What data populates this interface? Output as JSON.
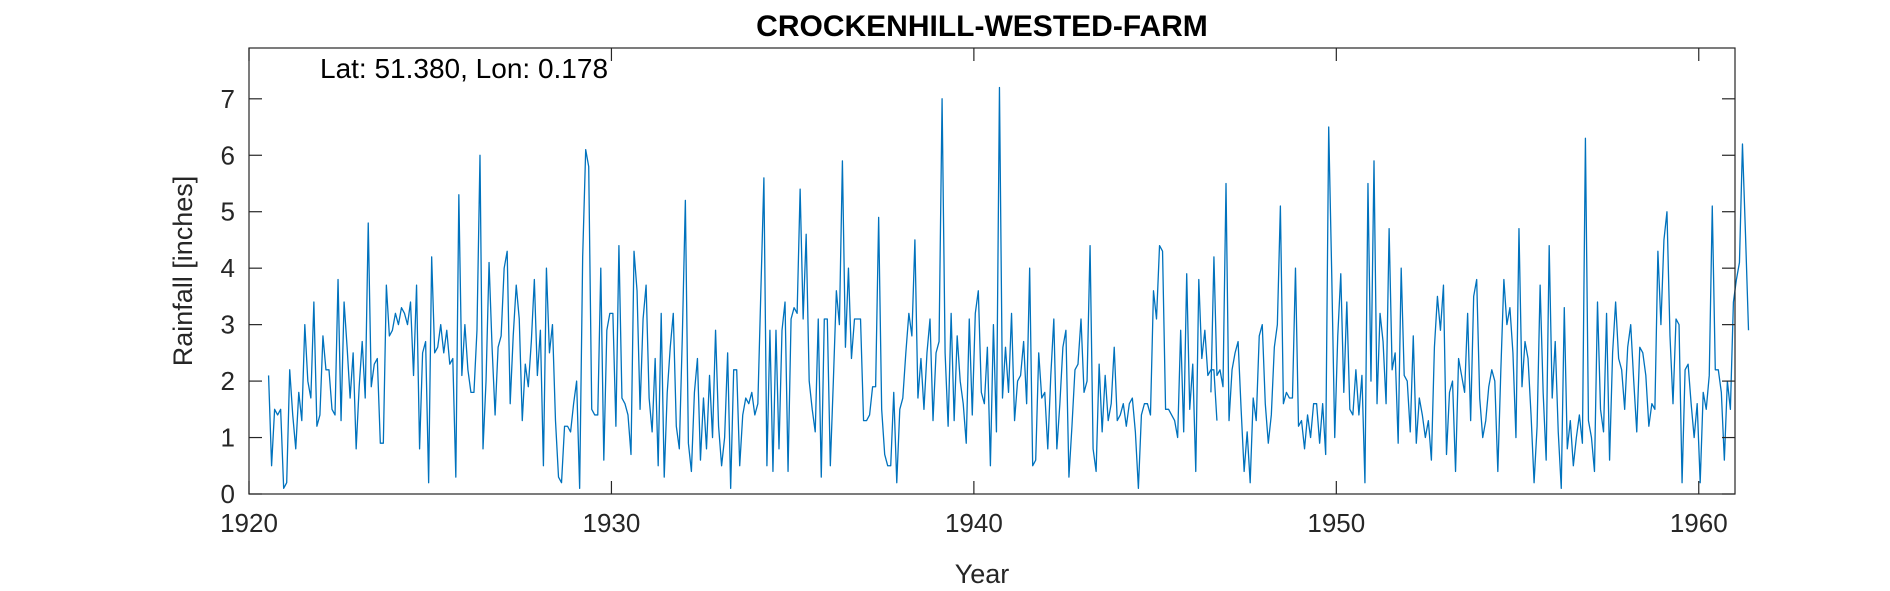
{
  "chart_data": {
    "type": "line",
    "title": "CROCKENHILL-WESTED-FARM",
    "annotation": "Lat: 51.380, Lon: 0.178",
    "xlabel": "Year",
    "ylabel": "Rainfall [inches]",
    "xlim": [
      1920,
      1961
    ],
    "ylim": [
      0,
      7.9
    ],
    "xticks": [
      1920,
      1930,
      1940,
      1950,
      1960
    ],
    "yticks": [
      0,
      1,
      2,
      3,
      4,
      5,
      6,
      7
    ],
    "grid": false,
    "line_color": "#0072bd",
    "series": [
      {
        "segments": [
          {
            "x_start": 1920.54,
            "x_step": 0.08333,
            "values": [
              2.1,
              0.5,
              1.5,
              1.4,
              1.5,
              0.1,
              0.2,
              2.2,
              1.4,
              0.8,
              1.8,
              1.3,
              3.0,
              2.0,
              1.7,
              3.4,
              1.2,
              1.4,
              2.8,
              2.2,
              2.2,
              1.5,
              1.4,
              3.8,
              1.3,
              3.4,
              2.6,
              1.7,
              2.5,
              0.8,
              1.9,
              2.7,
              1.7,
              4.8,
              1.9,
              2.3,
              2.4,
              0.9,
              0.9,
              3.7,
              2.8,
              2.9,
              3.2,
              3.0,
              3.3,
              3.2,
              3.0,
              3.4,
              2.1,
              3.7,
              0.8,
              2.5,
              2.7,
              0.2,
              4.2,
              2.5,
              2.6,
              3.0,
              2.5,
              2.9,
              2.3,
              2.4,
              0.3,
              5.3,
              2.1,
              3.0,
              2.2,
              1.8,
              1.8,
              2.9,
              6.0,
              0.8,
              2.0,
              4.1,
              2.6,
              1.4,
              2.6,
              2.8,
              4.0,
              4.3,
              1.6,
              2.8,
              3.7,
              3.1,
              1.3,
              2.3,
              1.9,
              2.7,
              3.8,
              2.1,
              2.9,
              0.5,
              4.0,
              2.5,
              3.0,
              1.3,
              0.3,
              0.2,
              1.2,
              1.2,
              1.1,
              1.6,
              2.0,
              0.1,
              4.2,
              6.1,
              5.8,
              1.5,
              1.4,
              1.4,
              4.0,
              0.6,
              2.9,
              3.2,
              3.2,
              1.2,
              4.4,
              1.7,
              1.6,
              1.4,
              0.7,
              4.3,
              3.6,
              1.5,
              3.1,
              3.7,
              1.7,
              1.1,
              2.4,
              0.5,
              3.2,
              0.3,
              1.8,
              2.6,
              3.2,
              1.2,
              0.8,
              2.8,
              5.2,
              0.9,
              0.4,
              1.8,
              2.4,
              0.6,
              1.7,
              0.8,
              2.1,
              1.0,
              2.9,
              1.2,
              0.5,
              1.0,
              2.5,
              0.1,
              2.2,
              2.2,
              0.5,
              1.4,
              1.7,
              1.6,
              1.8,
              1.4,
              1.6,
              3.6,
              5.6,
              0.5,
              2.9,
              0.4,
              2.9,
              0.8,
              2.9,
              3.4,
              0.4,
              3.1,
              3.3,
              3.2,
              5.4,
              3.1,
              4.6,
              2.0,
              1.5,
              1.1,
              3.1,
              0.3,
              3.1,
              3.1,
              0.5,
              2.0,
              3.6,
              3.0,
              5.9,
              2.6,
              4.0,
              2.4,
              3.1,
              3.1,
              3.1,
              1.3,
              1.3,
              1.4,
              1.9,
              1.9,
              4.9,
              1.5,
              0.7,
              0.5,
              0.5,
              1.8,
              0.2,
              1.5,
              1.7,
              2.5,
              3.2,
              2.8,
              4.5,
              1.7,
              2.4,
              1.5,
              2.5,
              3.1,
              1.3,
              2.5,
              2.7,
              7.0,
              2.5,
              1.2,
              3.2,
              1.3,
              2.8,
              2.0,
              1.6,
              0.9,
              3.1,
              1.4,
              3.2,
              3.6,
              1.8,
              1.6,
              2.6,
              0.5,
              3.0,
              1.1,
              7.2,
              1.7,
              2.6,
              1.8,
              3.2,
              1.3,
              2.0,
              2.1,
              2.7,
              1.6,
              4.0,
              0.5,
              0.6,
              2.5,
              1.7,
              1.8,
              0.8,
              2.1,
              3.1,
              0.8,
              1.6,
              2.6,
              2.9,
              0.3,
              1.2,
              2.2,
              2.3,
              3.1,
              1.8,
              2.0,
              4.4,
              0.8,
              0.4,
              2.3,
              1.1,
              2.1,
              1.3,
              1.6,
              2.6,
              1.3,
              1.4,
              1.6,
              1.2,
              1.6,
              1.7,
              1.1,
              0.1,
              1.4,
              1.6,
              1.6,
              1.4,
              3.6,
              3.1,
              4.4,
              4.3,
              1.5,
              1.5,
              1.4,
              1.3,
              1.0,
              2.9,
              1.1,
              3.9,
              1.5,
              2.3,
              0.4,
              3.8,
              2.4,
              2.9,
              2.1,
              2.2,
              2.2,
              1.3
            ]
          },
          {
            "x_start": 1946.54,
            "x_step": 0.08333,
            "values": [
              1.8,
              4.2,
              2.1,
              2.2,
              1.9,
              5.5,
              1.3,
              2.2,
              2.5,
              2.7,
              1.5,
              0.4,
              1.1,
              0.2,
              1.7,
              1.3,
              2.8,
              3.0,
              1.6,
              0.9,
              1.4,
              2.6,
              3.0,
              5.1,
              1.6,
              1.8,
              1.7,
              1.7,
              4.0,
              1.2,
              1.3,
              0.8,
              1.4,
              1.0,
              1.6,
              1.6,
              0.9,
              1.6,
              0.7,
              6.5,
              3.9,
              1.0,
              2.8,
              3.9,
              1.8,
              3.4,
              1.5,
              1.4,
              2.2,
              1.4,
              2.1,
              0.2,
              5.5,
              2.0,
              5.9,
              1.6,
              3.2,
              2.7,
              1.6,
              4.7,
              2.2,
              2.5,
              0.9,
              4.0,
              2.1,
              2.0,
              1.1,
              2.8,
              0.9,
              1.7,
              1.4,
              1.0,
              1.3,
              0.6,
              2.6,
              3.5,
              2.9,
              3.7,
              0.7,
              1.8,
              2.0,
              0.4,
              2.4,
              2.1,
              1.8,
              3.2,
              1.3,
              3.5,
              3.8,
              1.7,
              1.0,
              1.3,
              1.9,
              2.2,
              2.0,
              0.4,
              2.2,
              3.8,
              3.0,
              3.3,
              2.5,
              1.0,
              4.7,
              1.9,
              2.7,
              2.4,
              1.4,
              0.2,
              1.2,
              3.7,
              1.8,
              0.6,
              4.4,
              1.7,
              2.7,
              1.1,
              0.1,
              3.3,
              0.8,
              1.3,
              0.5,
              1.0,
              1.4,
              0.9,
              6.3,
              1.3,
              1.0,
              0.4,
              3.4,
              1.5,
              1.1,
              3.2,
              0.6,
              2.5,
              3.4,
              2.4,
              2.2,
              1.5,
              2.6,
              3.0,
              2.0,
              1.1,
              2.6,
              2.5,
              2.1,
              1.2,
              1.6,
              1.5,
              4.3,
              3.0,
              4.5,
              5.0,
              2.8,
              1.6,
              3.1,
              3.0,
              0.2,
              2.2,
              2.3,
              1.6,
              1.0,
              1.6,
              0.2,
              1.8,
              1.5,
              2.1,
              5.1,
              2.2,
              2.2,
              1.8,
              0.6,
              2.0,
              1.5,
              3.4,
              3.8,
              4.1,
              6.2,
              4.6,
              2.9
            ]
          }
        ]
      }
    ]
  }
}
